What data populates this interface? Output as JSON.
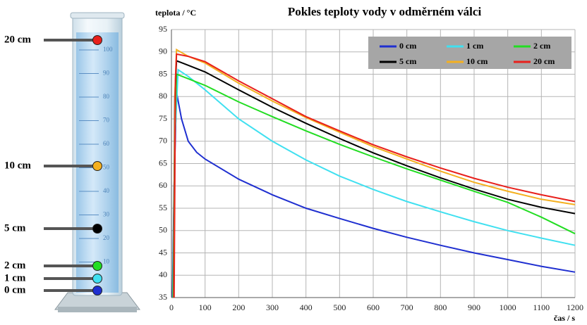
{
  "chart_data": {
    "type": "line",
    "title": "Pokles teploty vody v odměrném válci",
    "y_label": "teplota / °C",
    "x_label": "čas / s",
    "xlim": [
      0,
      1200
    ],
    "xticks": [
      0,
      100,
      200,
      300,
      400,
      500,
      600,
      700,
      800,
      900,
      1000,
      1100,
      1200
    ],
    "ylim": [
      35,
      95
    ],
    "yticks": [
      35,
      40,
      45,
      50,
      55,
      60,
      65,
      70,
      75,
      80,
      85,
      90,
      95
    ],
    "grid": true,
    "legend": "upper right",
    "series": [
      {
        "name": "0 cm",
        "color": "#1f2fd0",
        "x": [
          3,
          8,
          15,
          20,
          30,
          50,
          75,
          100,
          200,
          300,
          400,
          500,
          600,
          700,
          800,
          900,
          1000,
          1100,
          1200
        ],
        "values": [
          35,
          60,
          81,
          79,
          75,
          70,
          67.5,
          66,
          61.5,
          58,
          55,
          52.7,
          50.5,
          48.5,
          46.7,
          45,
          43.5,
          42,
          40.7
        ]
      },
      {
        "name": "1 cm",
        "color": "#40e0f0",
        "x": [
          4,
          10,
          20,
          50,
          100,
          200,
          300,
          400,
          500,
          600,
          700,
          800,
          900,
          1000,
          1100,
          1200
        ],
        "values": [
          35,
          70,
          86,
          84.5,
          81.5,
          75,
          70,
          65.8,
          62.2,
          59.2,
          56.5,
          54.2,
          52,
          50,
          48.3,
          46.7
        ]
      },
      {
        "name": "2 cm",
        "color": "#22dd22",
        "x": [
          5,
          10,
          15,
          50,
          100,
          200,
          300,
          400,
          500,
          600,
          700,
          800,
          900,
          1000,
          1100,
          1200
        ],
        "values": [
          35,
          72,
          85,
          84,
          82.5,
          78.8,
          75.5,
          72.3,
          69.3,
          66.5,
          63.8,
          61.3,
          58.8,
          56.3,
          53,
          49.3
        ]
      },
      {
        "name": "5 cm",
        "color": "#000000",
        "x": [
          6,
          10,
          15,
          50,
          100,
          200,
          300,
          400,
          500,
          600,
          700,
          800,
          900,
          1000,
          1100,
          1200
        ],
        "values": [
          35,
          80,
          88,
          87,
          85.5,
          81.5,
          77.6,
          74,
          70.6,
          67.4,
          64.5,
          61.8,
          59.3,
          57,
          55.2,
          53.8
        ]
      },
      {
        "name": "10 cm",
        "color": "#f4b020",
        "x": [
          7,
          11,
          15,
          50,
          100,
          200,
          300,
          400,
          500,
          600,
          700,
          800,
          900,
          1000,
          1100,
          1200
        ],
        "values": [
          35,
          82,
          90.5,
          89,
          87.5,
          83,
          79,
          75.3,
          72,
          68.8,
          66,
          63.3,
          60.8,
          58.8,
          57,
          55.8
        ]
      },
      {
        "name": "20 cm",
        "color": "#e8201c",
        "x": [
          8,
          12,
          15,
          50,
          100,
          200,
          300,
          400,
          500,
          600,
          700,
          800,
          900,
          1000,
          1100,
          1200
        ],
        "values": [
          35,
          84,
          89.5,
          89,
          87.8,
          83.5,
          79.5,
          75.5,
          72.3,
          69.2,
          66.5,
          64,
          61.7,
          59.7,
          58,
          56.5
        ]
      }
    ]
  },
  "cylinder": {
    "scale": [
      10,
      20,
      30,
      40,
      50,
      60,
      70,
      80,
      90,
      100
    ],
    "markers": [
      5,
      4,
      3,
      2,
      1,
      0
    ]
  }
}
